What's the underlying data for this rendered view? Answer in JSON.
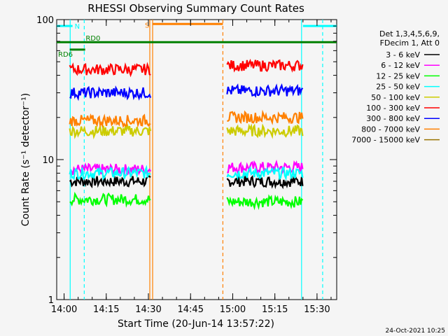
{
  "chart_data": {
    "type": "line",
    "title": "RHESSI Observing Summary Count Rates",
    "xlabel": "Start Time (20-Jun-14 13:57:22)",
    "ylabel": "Count Rate (s⁻¹ detector⁻¹)",
    "y_scale": "log",
    "ylim": [
      1,
      100
    ],
    "xlim": [
      "13:57:22",
      "15:37:00"
    ],
    "x_ticks": [
      "14:00",
      "14:15",
      "14:30",
      "14:45",
      "15:00",
      "15:15",
      "15:30"
    ],
    "y_ticks": [
      {
        "value": 1,
        "label": "1"
      },
      {
        "value": 10,
        "label": "10"
      },
      {
        "value": 100,
        "label": "100"
      }
    ],
    "grid": false,
    "legend_position": "right",
    "legend_header": [
      "Det 1,3,4,5,6,9,",
      "FDecim 1, Att 0"
    ],
    "series": [
      {
        "name": "3 - 6 keV",
        "color": "#000000",
        "segments": [
          {
            "start": "14:02",
            "end": "14:31",
            "y": 7.0
          },
          {
            "start": "14:58",
            "end": "15:25",
            "y": 7.0
          }
        ]
      },
      {
        "name": "6 - 12 keV",
        "color": "#ff00ff",
        "segments": [
          {
            "start": "14:02",
            "end": "14:31",
            "y": 8.5
          },
          {
            "start": "14:58",
            "end": "15:25",
            "y": 8.8
          }
        ]
      },
      {
        "name": "12 - 25 keV",
        "color": "#00ff00",
        "segments": [
          {
            "start": "14:02",
            "end": "14:31",
            "y": 5.2
          },
          {
            "start": "14:58",
            "end": "15:25",
            "y": 5.0
          }
        ]
      },
      {
        "name": "25 - 50 keV",
        "color": "#00ffff",
        "segments": [
          {
            "start": "14:02",
            "end": "14:31",
            "y": 8.0
          },
          {
            "start": "14:58",
            "end": "15:25",
            "y": 8.0
          }
        ]
      },
      {
        "name": "50 - 100 keV",
        "color": "#cccc00",
        "segments": [
          {
            "start": "14:02",
            "end": "14:31",
            "y": 16
          },
          {
            "start": "14:58",
            "end": "15:25",
            "y": 16
          }
        ]
      },
      {
        "name": "100 - 300 keV",
        "color": "#ff0000",
        "segments": [
          {
            "start": "14:02",
            "end": "14:31",
            "y": 44
          },
          {
            "start": "14:58",
            "end": "15:25",
            "y": 47
          }
        ]
      },
      {
        "name": "300 - 800 keV",
        "color": "#0000ff",
        "segments": [
          {
            "start": "14:02",
            "end": "14:31",
            "y": 30
          },
          {
            "start": "14:58",
            "end": "15:25",
            "y": 31
          }
        ]
      },
      {
        "name": "800 - 7000 keV",
        "color": "#ff8000",
        "segments": [
          {
            "start": "14:02",
            "end": "14:31",
            "y": 19
          },
          {
            "start": "14:58",
            "end": "15:25",
            "y": 20
          }
        ]
      },
      {
        "name": "7000 - 15000 keV",
        "color": "#997300",
        "segments": []
      }
    ],
    "annotations": [
      {
        "label": "N",
        "color": "#00ffff",
        "style": "bar",
        "start": "13:57:22",
        "end": "14:03:00",
        "y": 90
      },
      {
        "label": "N",
        "color": "#00ffff",
        "style": "bar",
        "start": "15:25:00",
        "end": "15:37:00",
        "y": 90
      },
      {
        "label": "RD6",
        "color": "#008000",
        "style": "bar",
        "start": "14:02:00",
        "end": "14:07:30",
        "y": 61
      },
      {
        "label": "RD0",
        "color": "#008000",
        "style": "bar",
        "start": "13:57:22",
        "end": "15:37:00",
        "y": 69
      },
      {
        "label": "S",
        "color": "#ff8000",
        "style": "bar",
        "start": "14:31:30",
        "end": "14:56:30",
        "y": 93
      }
    ],
    "markers": [
      {
        "time": "14:02:10",
        "color": "#00ffff",
        "style": "solid"
      },
      {
        "time": "14:07:10",
        "color": "#00ffff",
        "style": "dashed"
      },
      {
        "time": "15:24:30",
        "color": "#00ffff",
        "style": "solid"
      },
      {
        "time": "15:32:00",
        "color": "#00ffff",
        "style": "dashed"
      },
      {
        "time": "14:30:30",
        "color": "#ff8000",
        "style": "solid"
      },
      {
        "time": "14:31:30",
        "color": "#ff8000",
        "style": "solid"
      },
      {
        "time": "14:56:30",
        "color": "#ff8000",
        "style": "dashed"
      }
    ],
    "footer_timestamp": "24-Oct-2021 10:25"
  }
}
